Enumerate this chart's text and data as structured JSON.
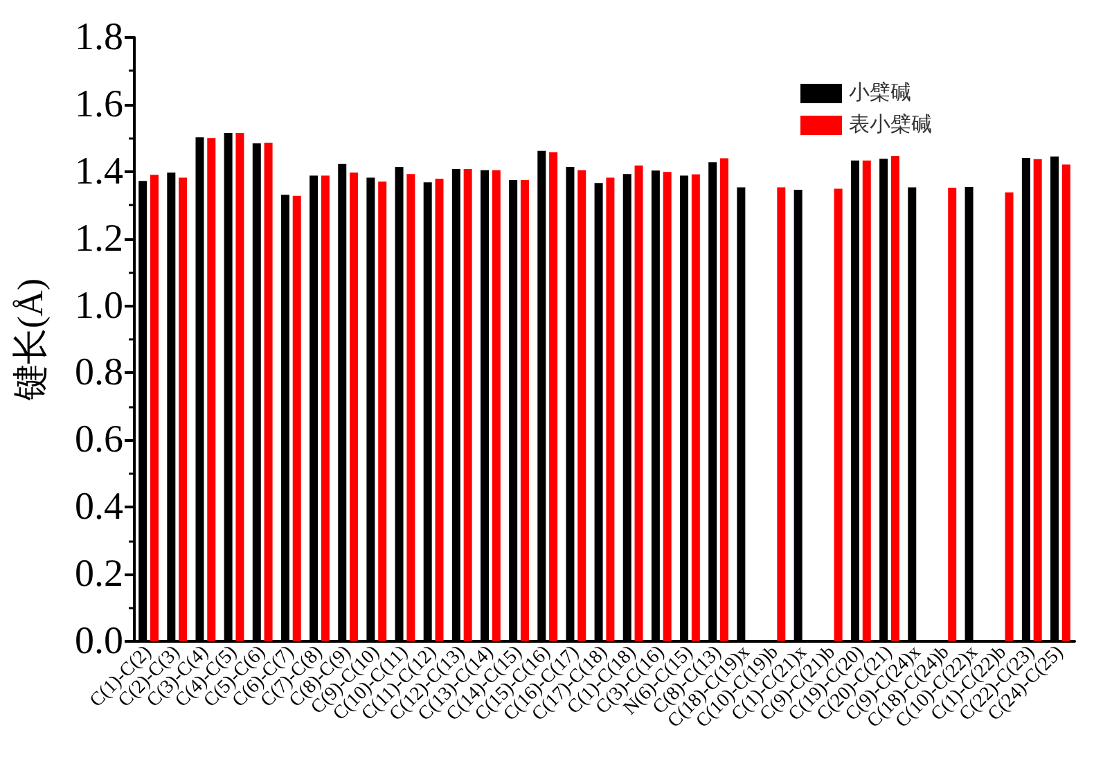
{
  "chart_data": {
    "type": "bar",
    "ylabel": "键长(Å)",
    "categories": [
      "C(1)-C(2)",
      "C(2)-C(3)",
      "C(3)-C(4)",
      "C(4)-C(5)",
      "C(5)-C(6)",
      "C(6)-C(7)",
      "C(7)-C(8)",
      "C(8)-C(9)",
      "C(9)-C(10)",
      "C(10)-C(11)",
      "C(11)-C(12)",
      "C(12)-C(13)",
      "C(13)-C(14)",
      "C(14)-C(15)",
      "C(15)-C(16)",
      "C(16)-C(17)",
      "C(17)-C(18)",
      "C(1)-C(18)",
      "C(3)-C(16)",
      "N(6)-C(15)",
      "C(8)-C(13)",
      "C(18)-C(19)x",
      "C(10)-C(19)b",
      "C(1)-C(21)x",
      "C(9)-C(21)b",
      "C(19)-C(20)",
      "C(20)-C(21)",
      "C(9)-C(24)x",
      "C(18)-C(24)b",
      "C(10)-C(22)x",
      "C(1)-C(22)b",
      "C(22)-C(23)",
      "C(24)-C(25)"
    ],
    "series": [
      {
        "name": "小檗碱",
        "color": "#000000",
        "values": [
          1.372,
          1.397,
          1.502,
          1.515,
          1.484,
          1.331,
          1.388,
          1.423,
          1.382,
          1.414,
          1.368,
          1.408,
          1.404,
          1.375,
          1.462,
          1.414,
          1.366,
          1.393,
          1.403,
          1.388,
          1.428,
          1.353,
          null,
          1.346,
          null,
          1.433,
          1.438,
          1.353,
          null,
          1.354,
          null,
          1.441,
          1.445
        ]
      },
      {
        "name": "表小檗碱",
        "color": "#ff0000",
        "values": [
          1.39,
          1.382,
          1.5,
          1.515,
          1.486,
          1.328,
          1.388,
          1.397,
          1.37,
          1.393,
          1.379,
          1.408,
          1.404,
          1.375,
          1.458,
          1.404,
          1.382,
          1.418,
          1.399,
          1.392,
          1.44,
          null,
          1.353,
          null,
          1.349,
          1.433,
          1.447,
          null,
          1.352,
          null,
          1.338,
          1.437,
          1.421
        ]
      }
    ],
    "ylim": [
      0,
      1.8
    ],
    "yticks": [
      {
        "value": 0,
        "label": "0.0"
      },
      0.2,
      0.4,
      0.6,
      0.8,
      {
        "value": 1,
        "label": "1.0"
      },
      1.2,
      1.4,
      1.6,
      1.8
    ],
    "legend": "top right"
  }
}
